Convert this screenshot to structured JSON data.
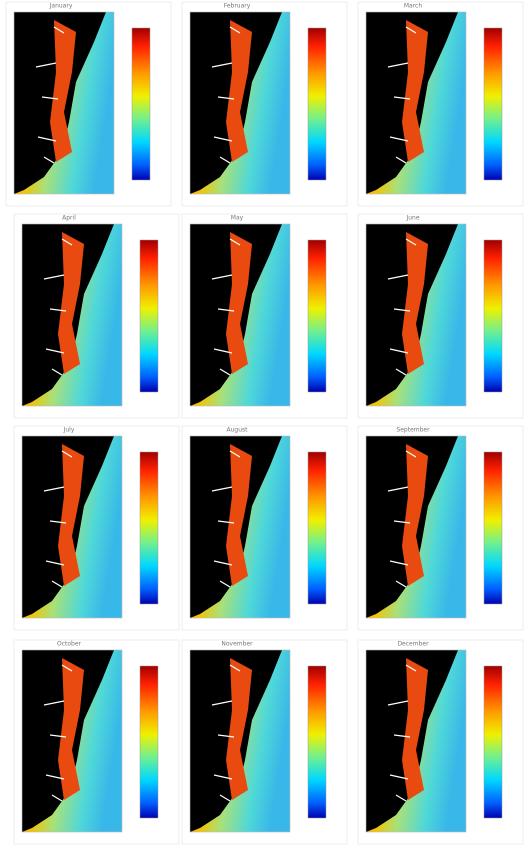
{
  "panels": [
    {
      "title": "January"
    },
    {
      "title": "February"
    },
    {
      "title": "March"
    },
    {
      "title": "April"
    },
    {
      "title": "May"
    },
    {
      "title": "June"
    },
    {
      "title": "July"
    },
    {
      "title": "August"
    },
    {
      "title": "September"
    },
    {
      "title": "October"
    },
    {
      "title": "November"
    },
    {
      "title": "December"
    }
  ]
}
